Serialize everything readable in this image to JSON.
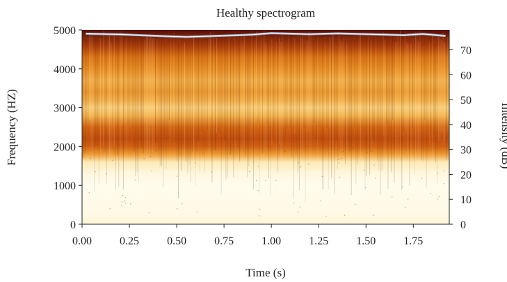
{
  "chart_data": {
    "type": "heatmap",
    "title": "Healthy spectrogram",
    "xlabel": "Time (s)",
    "ylabel": "Frequency (HZ)",
    "y2label": "Intensity (dB)",
    "xlim": [
      0,
      1.94
    ],
    "ylim": [
      0,
      5000
    ],
    "y2lim": [
      0,
      78
    ],
    "x_ticks": [
      "0.00",
      "0.25",
      "0.50",
      "0.75",
      "1.00",
      "1.25",
      "1.50",
      "1.75"
    ],
    "x_tick_values": [
      0,
      0.25,
      0.5,
      0.75,
      1.0,
      1.25,
      1.5,
      1.75
    ],
    "y_ticks": [
      "0",
      "1000",
      "2000",
      "3000",
      "4000",
      "5000"
    ],
    "y_tick_values": [
      0,
      1000,
      2000,
      3000,
      4000,
      5000
    ],
    "y2_ticks": [
      "0",
      "10",
      "20",
      "30",
      "40",
      "50",
      "60",
      "70"
    ],
    "y2_tick_values": [
      0,
      10,
      20,
      30,
      40,
      50,
      60,
      70
    ],
    "frequency_profile": {
      "frequency_hz": [
        0,
        300,
        700,
        1000,
        1300,
        1600,
        1800,
        2000,
        2200,
        2500,
        2800,
        3000,
        3200,
        3400,
        3700,
        4000,
        4300,
        4600,
        5000
      ],
      "relative_intensity": [
        0.9,
        0.95,
        0.97,
        0.98,
        0.93,
        0.82,
        0.55,
        0.4,
        0.35,
        0.42,
        0.62,
        0.7,
        0.6,
        0.55,
        0.6,
        0.52,
        0.45,
        0.3,
        0.12
      ]
    },
    "intensity_series": {
      "name": "",
      "color": "#9fb4d6",
      "time_s": [
        0.02,
        0.2,
        0.4,
        0.55,
        0.75,
        0.9,
        1.0,
        1.2,
        1.35,
        1.55,
        1.7,
        1.8,
        1.92
      ],
      "intensity_db": [
        76.5,
        76.2,
        75.6,
        75.2,
        75.7,
        76.1,
        76.7,
        76.3,
        76.6,
        76.2,
        75.9,
        76.4,
        75.6
      ]
    },
    "colormap": [
      "#1a0402",
      "#5a1106",
      "#9a2e0a",
      "#c9560f",
      "#e8891e",
      "#f5b752",
      "#fbdc93",
      "#fff4d2",
      "#fffdf2"
    ],
    "grid": false,
    "legend": "none"
  }
}
